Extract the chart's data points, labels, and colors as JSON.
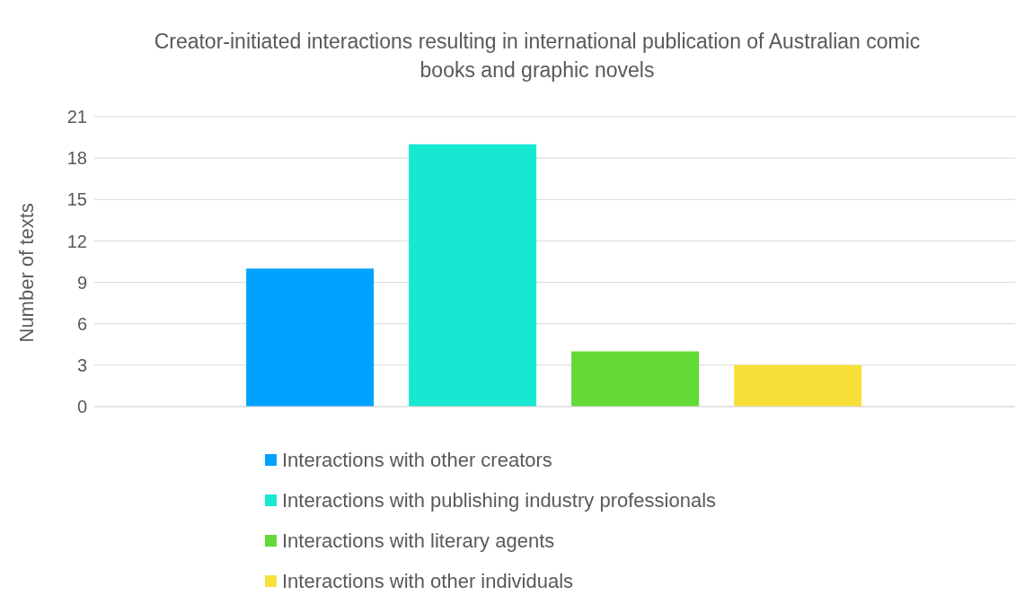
{
  "chart_data": {
    "type": "bar",
    "title": "Creator-initiated interactions resulting in international publication of Australian comic books and graphic novels",
    "ylabel": "Number of texts",
    "categories": [
      null
    ],
    "series": [
      {
        "name": "Interactions with other creators",
        "color": "#00a2ff",
        "values": [
          10
        ]
      },
      {
        "name": "Interactions with publishing industry professionals",
        "color": "#17e8d2",
        "values": [
          19
        ]
      },
      {
        "name": "Interactions with literary agents",
        "color": "#62d935",
        "values": [
          4
        ]
      },
      {
        "name": "Interactions with other individuals",
        "color": "#f8e03a",
        "values": [
          3
        ]
      }
    ],
    "ylim": [
      0,
      21
    ],
    "yticks": [
      0,
      3,
      6,
      9,
      12,
      15,
      18,
      21
    ],
    "grid": "y",
    "legend": "bottom"
  }
}
